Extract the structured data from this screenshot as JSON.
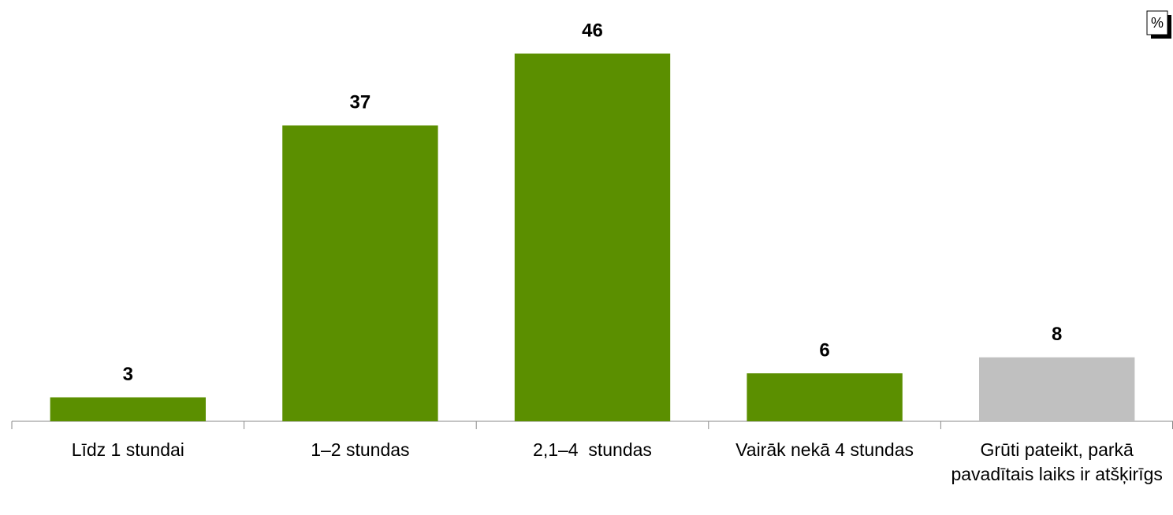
{
  "chart_data": {
    "type": "bar",
    "unit": "%",
    "categories": [
      "Līdz 1 stundai",
      "1–2 stundas",
      "2,1–4  stundas",
      "Vairāk nekā 4 stundas",
      "Grūti pateikt, parkā pavadītais laiks ir atšķirīgs"
    ],
    "values": [
      3,
      37,
      46,
      6,
      8
    ],
    "colors": [
      "#5b8f00",
      "#5b8f00",
      "#5b8f00",
      "#5b8f00",
      "#c0c0c0"
    ]
  }
}
